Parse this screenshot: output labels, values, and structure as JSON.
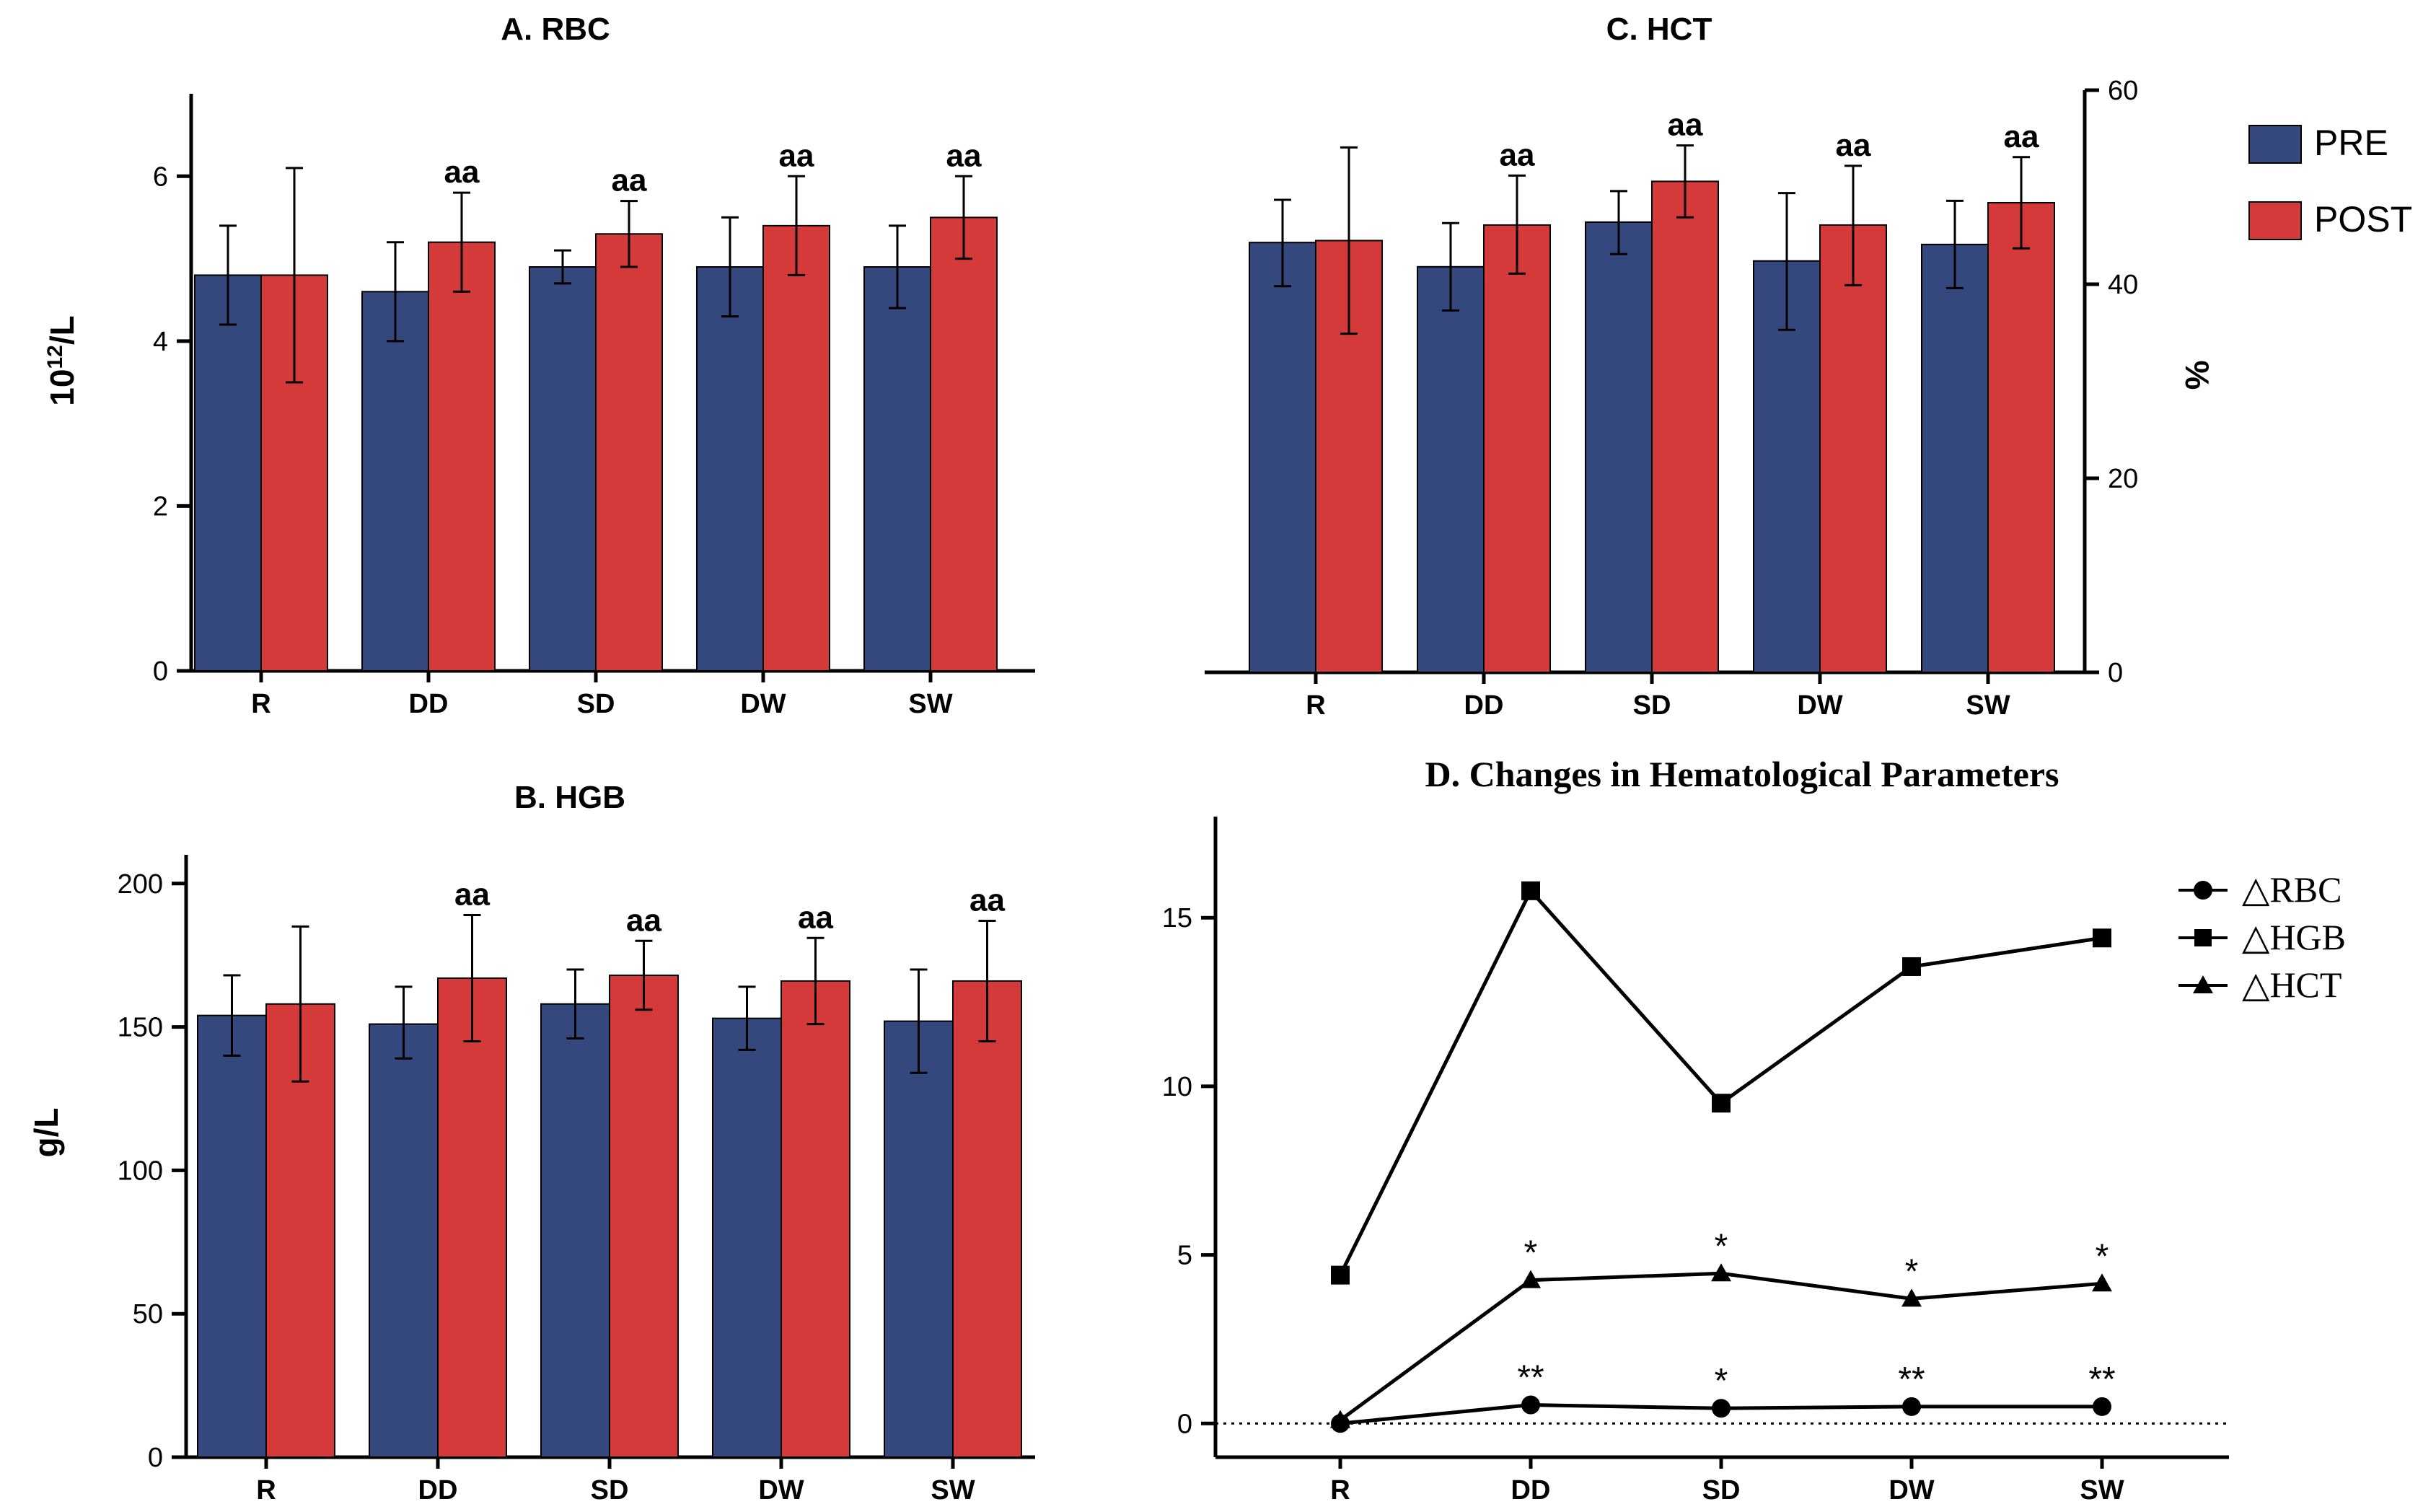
{
  "colors": {
    "pre": "#35487E",
    "post": "#D43A3A",
    "axis": "#000000",
    "bg": "#FFFFFF"
  },
  "legend_top": {
    "pre": "PRE",
    "post": "POST"
  },
  "chart_data": [
    {
      "id": "A",
      "type": "bar",
      "title": "A. RBC",
      "ylabel_base": "10",
      "ylabel_sup": "12",
      "ylabel_rest": "/L",
      "categories": [
        "R",
        "DD",
        "SD",
        "DW",
        "SW"
      ],
      "ylim": [
        0,
        7
      ],
      "yticks": [
        0,
        2,
        4,
        6
      ],
      "series": [
        {
          "name": "PRE",
          "values": [
            4.8,
            4.6,
            4.9,
            4.9,
            4.9
          ],
          "err_high": [
            5.4,
            5.2,
            5.1,
            5.5,
            5.4
          ],
          "err_low": [
            4.2,
            4.0,
            4.7,
            4.3,
            4.4
          ]
        },
        {
          "name": "POST",
          "values": [
            4.8,
            5.2,
            5.3,
            5.4,
            5.5
          ],
          "err_high": [
            6.1,
            5.8,
            5.7,
            6.0,
            6.0
          ],
          "err_low": [
            3.5,
            4.6,
            4.9,
            4.8,
            5.0
          ]
        }
      ],
      "annotations": [
        "",
        "aa",
        "aa",
        "aa",
        "aa"
      ]
    },
    {
      "id": "B",
      "type": "bar",
      "title": "B. HGB",
      "ylabel": "g/L",
      "categories": [
        "R",
        "DD",
        "SD",
        "DW",
        "SW"
      ],
      "ylim": [
        0,
        210
      ],
      "yticks": [
        0,
        50,
        100,
        150,
        200
      ],
      "series": [
        {
          "name": "PRE",
          "values": [
            154,
            151,
            158,
            153,
            152
          ],
          "err_high": [
            168,
            164,
            170,
            164,
            170
          ],
          "err_low": [
            140,
            139,
            146,
            142,
            134
          ]
        },
        {
          "name": "POST",
          "values": [
            158,
            167,
            168,
            166,
            166
          ],
          "err_high": [
            185,
            189,
            180,
            181,
            187
          ],
          "err_low": [
            131,
            145,
            156,
            151,
            145
          ]
        }
      ],
      "annotations": [
        "",
        "aa",
        "aa",
        "aa",
        "aa"
      ]
    },
    {
      "id": "C",
      "type": "bar",
      "title": "C. HCT",
      "ylabel": "%",
      "categories": [
        "R",
        "DD",
        "SD",
        "DW",
        "SW"
      ],
      "ylim": [
        0,
        60
      ],
      "yticks": [
        0,
        20,
        40,
        60
      ],
      "series": [
        {
          "name": "PRE",
          "values": [
            44.3,
            41.8,
            46.4,
            42.4,
            44.1
          ],
          "err_high": [
            48.7,
            46.3,
            49.6,
            49.4,
            48.6
          ],
          "err_low": [
            39.8,
            37.3,
            43.1,
            35.3,
            39.6
          ]
        },
        {
          "name": "POST",
          "values": [
            44.5,
            46.1,
            50.6,
            46.1,
            48.4
          ],
          "err_high": [
            54.1,
            51.2,
            54.3,
            52.2,
            53.1
          ],
          "err_low": [
            34.9,
            41.1,
            46.9,
            39.9,
            43.7
          ]
        }
      ],
      "annotations": [
        "",
        "aa",
        "aa",
        "aa",
        "aa"
      ]
    },
    {
      "id": "D",
      "type": "line",
      "title": "D. Changes in Hematological Parameters",
      "categories": [
        "R",
        "DD",
        "SD",
        "DW",
        "SW"
      ],
      "ylim": [
        -1,
        18
      ],
      "yticks": [
        0,
        5,
        10,
        15
      ],
      "reference_line": 0,
      "series": [
        {
          "name": "△RBC",
          "marker": "circle",
          "values": [
            0,
            0.55,
            0.45,
            0.5,
            0.5
          ],
          "annotations": [
            "",
            "**",
            "*",
            "**",
            "**"
          ]
        },
        {
          "name": "△HGB",
          "marker": "square",
          "values": [
            4.4,
            15.8,
            9.5,
            13.55,
            14.4
          ],
          "annotations": [
            "",
            "",
            "",
            "",
            ""
          ]
        },
        {
          "name": "△HCT",
          "marker": "triangle",
          "values": [
            0.1,
            4.25,
            4.45,
            3.7,
            4.15
          ],
          "annotations": [
            "",
            "*",
            "*",
            "*",
            "*"
          ]
        }
      ]
    }
  ]
}
